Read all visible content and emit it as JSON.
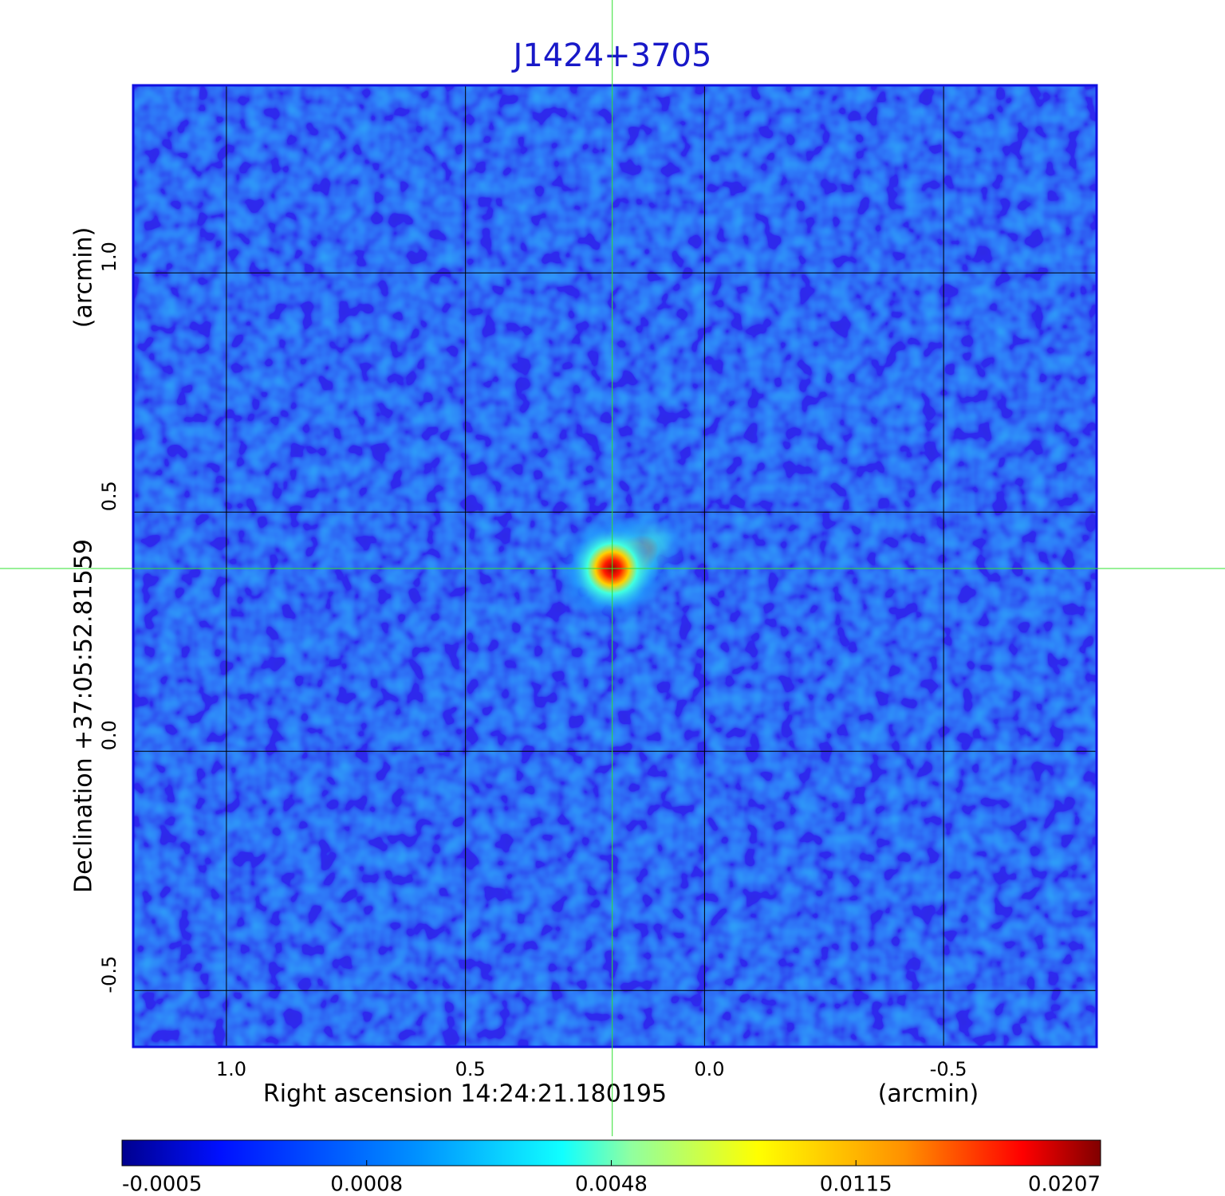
{
  "chart_data": {
    "type": "image",
    "title": "J1424+3705",
    "x_label": "Right ascension  14:24:21.180195",
    "x_unit": "(arcmin)",
    "y_label": "Declination  +37:05:52.81559",
    "y_unit": "(arcmin)",
    "xlim": [
      1.195,
      -0.82
    ],
    "ylim": [
      -0.618,
      1.392
    ],
    "xticks": [
      {
        "value": 1,
        "label": "1.0"
      },
      0.5,
      {
        "value": 0,
        "label": "0.0"
      },
      -0.5
    ],
    "yticks": [
      -0.5,
      {
        "value": 0,
        "label": "0.0"
      },
      0.5,
      {
        "value": 1,
        "label": "1.0"
      }
    ],
    "grid": true,
    "source": {
      "x": 0.193,
      "y": 0.382,
      "peak": 0.0207
    },
    "colorbar": {
      "ticks": [
        -0.0005,
        0.0008,
        0.0048,
        0.0115,
        0.0207
      ]
    }
  }
}
